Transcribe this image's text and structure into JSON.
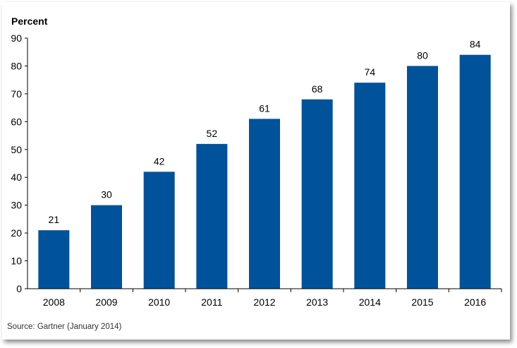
{
  "chart_data": {
    "type": "bar",
    "ylabel": "Percent",
    "xlabel": "",
    "title": "",
    "categories": [
      "2008",
      "2009",
      "2010",
      "2011",
      "2012",
      "2013",
      "2014",
      "2015",
      "2016"
    ],
    "values": [
      21,
      30,
      42,
      52,
      61,
      68,
      74,
      80,
      84
    ],
    "data_labels": [
      "21",
      "30",
      "42",
      "52",
      "61",
      "68",
      "74",
      "80",
      "84"
    ],
    "yticks": [
      0,
      10,
      20,
      30,
      40,
      50,
      60,
      70,
      80,
      90
    ],
    "ylim": [
      0,
      90
    ],
    "grid": false,
    "legend": "none",
    "bar_color": "#00529B",
    "source": "Source: Gartner (January 2014)"
  }
}
